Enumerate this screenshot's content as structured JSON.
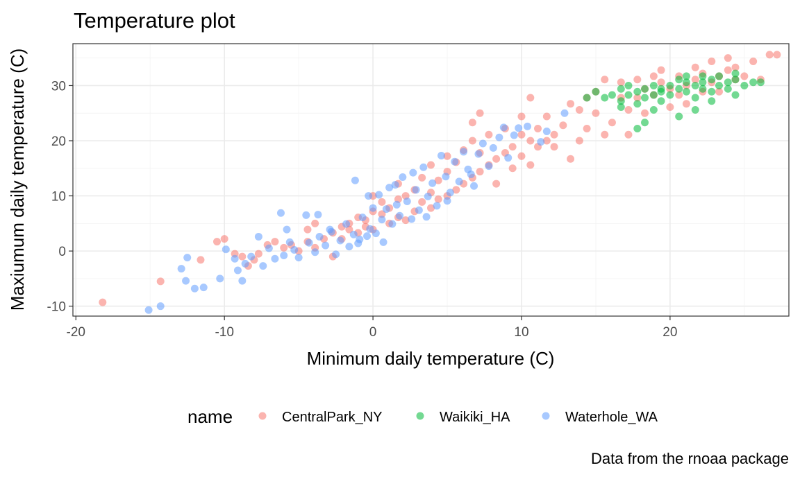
{
  "chart_data": {
    "type": "scatter",
    "title": "Temperature plot",
    "xlabel": "Minimum daily temperature (C)",
    "ylabel": "Maxiumum daily temperature (C)",
    "caption": "Data from the rnoaa package",
    "xlim": [
      -20.2,
      28.0
    ],
    "ylim": [
      -11.8,
      37.6
    ],
    "x_ticks": [
      -20,
      -10,
      0,
      10,
      20
    ],
    "y_ticks": [
      -10,
      0,
      10,
      20,
      30
    ],
    "grid": true,
    "legend": {
      "title": "name",
      "placement": "bottom",
      "entries": [
        {
          "label": "CentralPark_NY",
          "color": "#F8766D"
        },
        {
          "label": "Waikiki_HA",
          "color": "#00BA38"
        },
        {
          "label": "Waterhole_WA",
          "color": "#619CFF"
        }
      ]
    },
    "series": [
      {
        "name": "CentralPark_NY",
        "color": "#F8766D",
        "points": [
          [
            -18.2,
            -9.3
          ],
          [
            -14.3,
            -5.5
          ],
          [
            -11.6,
            -1.6
          ],
          [
            -10.5,
            1.7
          ],
          [
            -10.0,
            2.2
          ],
          [
            -9.3,
            -0.5
          ],
          [
            -8.8,
            -1.0
          ],
          [
            -8.4,
            -2.7
          ],
          [
            -8.0,
            -1.6
          ],
          [
            -7.7,
            -0.5
          ],
          [
            -7.1,
            1.1
          ],
          [
            -6.6,
            1.7
          ],
          [
            -6.0,
            0.6
          ],
          [
            -5.5,
            1.1
          ],
          [
            -5.0,
            0.0
          ],
          [
            -4.4,
            1.7
          ],
          [
            -4.4,
            3.9
          ],
          [
            -3.9,
            0.6
          ],
          [
            -3.9,
            5.0
          ],
          [
            -3.3,
            2.2
          ],
          [
            -2.7,
            3.3
          ],
          [
            -2.7,
            -1.0
          ],
          [
            -2.1,
            4.4
          ],
          [
            -2.1,
            2.2
          ],
          [
            -1.6,
            3.9
          ],
          [
            -1.6,
            5.0
          ],
          [
            -1.0,
            3.3
          ],
          [
            -1.0,
            6.1
          ],
          [
            -0.5,
            4.4
          ],
          [
            -0.5,
            5.6
          ],
          [
            0.0,
            3.9
          ],
          [
            0.0,
            7.2
          ],
          [
            0.0,
            10.0
          ],
          [
            0.6,
            6.7
          ],
          [
            0.6,
            8.9
          ],
          [
            1.1,
            5.0
          ],
          [
            1.1,
            7.8
          ],
          [
            1.7,
            6.1
          ],
          [
            1.7,
            9.4
          ],
          [
            1.7,
            12.2
          ],
          [
            2.2,
            5.6
          ],
          [
            2.2,
            10.0
          ],
          [
            2.8,
            7.2
          ],
          [
            2.8,
            11.1
          ],
          [
            3.3,
            8.9
          ],
          [
            3.3,
            13.3
          ],
          [
            3.9,
            7.8
          ],
          [
            3.9,
            10.6
          ],
          [
            3.9,
            15.6
          ],
          [
            4.4,
            9.4
          ],
          [
            4.4,
            12.8
          ],
          [
            5.0,
            10.0
          ],
          [
            5.0,
            14.4
          ],
          [
            5.0,
            17.2
          ],
          [
            5.6,
            11.1
          ],
          [
            5.6,
            16.1
          ],
          [
            6.1,
            12.2
          ],
          [
            6.1,
            18.3
          ],
          [
            6.7,
            13.3
          ],
          [
            6.7,
            20.0
          ],
          [
            6.7,
            23.3
          ],
          [
            7.2,
            14.4
          ],
          [
            7.2,
            17.8
          ],
          [
            7.2,
            25.0
          ],
          [
            7.8,
            15.6
          ],
          [
            7.8,
            21.1
          ],
          [
            8.3,
            16.7
          ],
          [
            8.3,
            12.2
          ],
          [
            8.9,
            17.8
          ],
          [
            8.9,
            22.2
          ],
          [
            9.4,
            18.9
          ],
          [
            9.4,
            15.0
          ],
          [
            10.0,
            17.2
          ],
          [
            10.0,
            21.1
          ],
          [
            10.0,
            24.4
          ],
          [
            10.6,
            20.0
          ],
          [
            10.6,
            15.6
          ],
          [
            10.6,
            27.8
          ],
          [
            11.1,
            18.9
          ],
          [
            11.1,
            22.2
          ],
          [
            11.7,
            20.0
          ],
          [
            11.7,
            24.4
          ],
          [
            12.2,
            21.1
          ],
          [
            12.2,
            18.9
          ],
          [
            12.8,
            22.8
          ],
          [
            13.3,
            16.7
          ],
          [
            13.3,
            26.7
          ],
          [
            13.9,
            25.6
          ],
          [
            13.9,
            20.0
          ],
          [
            14.4,
            22.2
          ],
          [
            14.4,
            27.8
          ],
          [
            15.0,
            28.9
          ],
          [
            15.0,
            25.0
          ],
          [
            15.6,
            31.1
          ],
          [
            15.6,
            21.1
          ],
          [
            16.1,
            23.3
          ],
          [
            16.7,
            27.8
          ],
          [
            16.7,
            30.6
          ],
          [
            17.2,
            25.6
          ],
          [
            17.2,
            21.1
          ],
          [
            17.8,
            31.1
          ],
          [
            17.8,
            27.8
          ],
          [
            18.3,
            25.0
          ],
          [
            18.3,
            29.4
          ],
          [
            18.9,
            28.3
          ],
          [
            18.9,
            31.7
          ],
          [
            19.4,
            30.6
          ],
          [
            19.4,
            32.8
          ],
          [
            20.0,
            26.1
          ],
          [
            20.0,
            29.4
          ],
          [
            20.6,
            28.3
          ],
          [
            20.6,
            31.7
          ],
          [
            21.1,
            30.0
          ],
          [
            21.1,
            26.7
          ],
          [
            21.7,
            31.1
          ],
          [
            21.7,
            33.3
          ],
          [
            22.2,
            28.9
          ],
          [
            22.2,
            32.2
          ],
          [
            22.8,
            30.6
          ],
          [
            22.8,
            34.4
          ],
          [
            23.3,
            31.7
          ],
          [
            23.3,
            28.9
          ],
          [
            23.9,
            32.8
          ],
          [
            23.9,
            35.0
          ],
          [
            24.4,
            31.1
          ],
          [
            24.4,
            33.3
          ],
          [
            25.0,
            31.7
          ],
          [
            25.6,
            34.4
          ],
          [
            26.1,
            31.1
          ],
          [
            26.7,
            35.6
          ],
          [
            27.2,
            35.6
          ]
        ]
      },
      {
        "name": "Waikiki_HA",
        "color": "#00BA38",
        "points": [
          [
            14.4,
            27.8
          ],
          [
            15.0,
            28.9
          ],
          [
            15.6,
            27.8
          ],
          [
            16.1,
            28.3
          ],
          [
            16.7,
            29.4
          ],
          [
            16.7,
            27.2
          ],
          [
            17.2,
            28.3
          ],
          [
            17.2,
            30.0
          ],
          [
            17.8,
            26.7
          ],
          [
            17.8,
            28.9
          ],
          [
            18.3,
            29.4
          ],
          [
            18.3,
            27.8
          ],
          [
            18.9,
            28.3
          ],
          [
            18.9,
            30.0
          ],
          [
            19.4,
            28.9
          ],
          [
            19.4,
            27.2
          ],
          [
            20.0,
            30.0
          ],
          [
            20.0,
            28.3
          ],
          [
            20.6,
            29.4
          ],
          [
            20.6,
            31.1
          ],
          [
            21.1,
            28.9
          ],
          [
            21.1,
            30.6
          ],
          [
            21.7,
            30.0
          ],
          [
            21.7,
            27.8
          ],
          [
            22.2,
            30.6
          ],
          [
            22.2,
            29.4
          ],
          [
            22.8,
            31.1
          ],
          [
            22.8,
            28.9
          ],
          [
            23.3,
            30.0
          ],
          [
            23.3,
            31.7
          ],
          [
            23.9,
            30.6
          ],
          [
            23.9,
            29.4
          ],
          [
            24.4,
            31.1
          ],
          [
            24.4,
            28.3
          ],
          [
            25.0,
            30.0
          ],
          [
            25.6,
            30.6
          ],
          [
            26.1,
            30.6
          ],
          [
            18.3,
            23.3
          ],
          [
            17.8,
            22.2
          ],
          [
            20.6,
            24.4
          ],
          [
            21.7,
            25.6
          ],
          [
            22.8,
            27.2
          ],
          [
            16.7,
            26.1
          ],
          [
            19.4,
            29.4
          ],
          [
            22.2,
            31.7
          ],
          [
            24.4,
            32.2
          ],
          [
            18.9,
            25.6
          ],
          [
            21.1,
            31.7
          ]
        ]
      },
      {
        "name": "Waterhole_WA",
        "color": "#619CFF",
        "points": [
          [
            -15.1,
            -10.7
          ],
          [
            -14.3,
            -10.0
          ],
          [
            -12.9,
            -3.2
          ],
          [
            -12.6,
            -5.4
          ],
          [
            -12.5,
            -1.2
          ],
          [
            -12.0,
            -6.8
          ],
          [
            -11.4,
            -6.6
          ],
          [
            -10.3,
            -5.0
          ],
          [
            -9.9,
            0.3
          ],
          [
            -9.3,
            -1.4
          ],
          [
            -8.8,
            -5.4
          ],
          [
            -8.6,
            -2.3
          ],
          [
            -8.2,
            -1.0
          ],
          [
            -7.7,
            2.6
          ],
          [
            -7.4,
            -2.7
          ],
          [
            -7.0,
            0.5
          ],
          [
            -6.6,
            -1.4
          ],
          [
            -6.2,
            6.9
          ],
          [
            -6.0,
            -0.8
          ],
          [
            -5.6,
            1.6
          ],
          [
            -5.3,
            0.2
          ],
          [
            -5.0,
            -1.2
          ],
          [
            -4.5,
            6.5
          ],
          [
            -4.3,
            1.5
          ],
          [
            -3.9,
            -0.2
          ],
          [
            -3.6,
            2.6
          ],
          [
            -3.2,
            1.0
          ],
          [
            -2.8,
            3.5
          ],
          [
            -2.5,
            -0.6
          ],
          [
            -2.2,
            1.9
          ],
          [
            -1.8,
            4.9
          ],
          [
            -1.6,
            0.8
          ],
          [
            -1.3,
            3.0
          ],
          [
            -1.0,
            1.4
          ],
          [
            -0.7,
            6.1
          ],
          [
            -0.4,
            2.7
          ],
          [
            -0.2,
            4.0
          ],
          [
            0.0,
            7.8
          ],
          [
            0.2,
            3.2
          ],
          [
            0.4,
            10.2
          ],
          [
            0.6,
            5.7
          ],
          [
            0.9,
            7.6
          ],
          [
            1.1,
            11.5
          ],
          [
            1.3,
            4.9
          ],
          [
            1.6,
            8.4
          ],
          [
            1.8,
            6.4
          ],
          [
            2.0,
            13.4
          ],
          [
            2.3,
            9.0
          ],
          [
            2.6,
            5.8
          ],
          [
            2.9,
            11.1
          ],
          [
            3.1,
            7.4
          ],
          [
            3.4,
            15.2
          ],
          [
            3.7,
            9.9
          ],
          [
            4.0,
            12.3
          ],
          [
            4.3,
            8.2
          ],
          [
            4.6,
            17.3
          ],
          [
            4.9,
            13.5
          ],
          [
            5.2,
            10.6
          ],
          [
            5.5,
            16.2
          ],
          [
            5.8,
            12.6
          ],
          [
            6.1,
            18.0
          ],
          [
            6.4,
            14.8
          ],
          [
            6.8,
            11.8
          ],
          [
            7.1,
            17.6
          ],
          [
            7.4,
            19.5
          ],
          [
            7.8,
            15.4
          ],
          [
            8.1,
            18.7
          ],
          [
            8.5,
            20.6
          ],
          [
            8.8,
            22.4
          ],
          [
            9.1,
            16.9
          ],
          [
            9.5,
            21.0
          ],
          [
            9.8,
            22.3
          ],
          [
            10.4,
            22.6
          ],
          [
            11.3,
            19.8
          ],
          [
            11.7,
            21.7
          ],
          [
            12.9,
            25.0
          ],
          [
            -1.2,
            12.8
          ],
          [
            -0.3,
            10.0
          ],
          [
            1.5,
            12.0
          ],
          [
            2.7,
            14.2
          ],
          [
            -2.9,
            3.9
          ],
          [
            -0.9,
            2.1
          ],
          [
            0.7,
            1.6
          ],
          [
            3.6,
            6.2
          ],
          [
            5.0,
            9.1
          ],
          [
            6.6,
            13.9
          ],
          [
            -3.7,
            6.6
          ],
          [
            -5.8,
            3.9
          ],
          [
            -9.1,
            -3.5
          ]
        ]
      }
    ]
  }
}
